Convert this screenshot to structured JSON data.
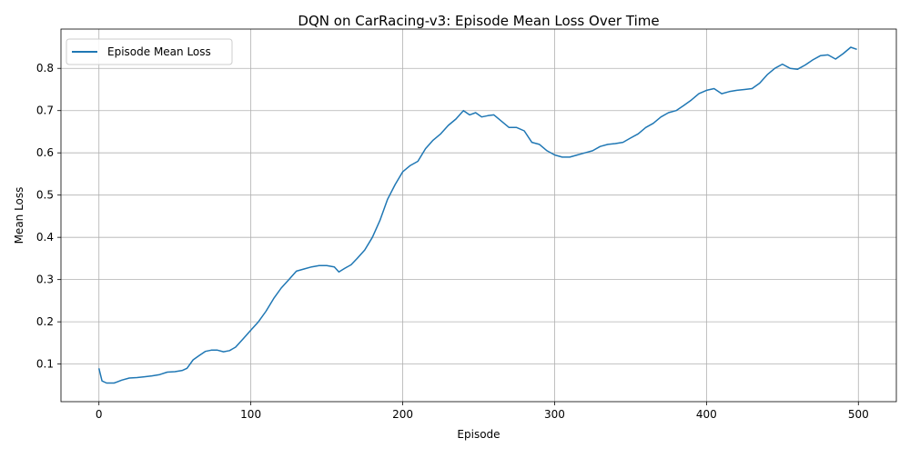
{
  "chart_data": {
    "type": "line",
    "title": "DQN on CarRacing-v3: Episode Mean Loss Over Time",
    "xlabel": "Episode",
    "ylabel": "Mean Loss",
    "xlim": [
      -25,
      525
    ],
    "ylim": [
      0.011,
      0.893
    ],
    "xticks": [
      0,
      100,
      200,
      300,
      400,
      500
    ],
    "xtick_labels": [
      "0",
      "100",
      "200",
      "300",
      "400",
      "500"
    ],
    "yticks": [
      0.1,
      0.2,
      0.3,
      0.4,
      0.5,
      0.6,
      0.7,
      0.8
    ],
    "ytick_labels": [
      "0.1",
      "0.2",
      "0.3",
      "0.4",
      "0.5",
      "0.6",
      "0.7",
      "0.8"
    ],
    "grid": true,
    "legend_position": "top-left",
    "series": [
      {
        "name": "Episode Mean Loss",
        "color": "#1f77b4",
        "x": [
          0,
          2,
          5,
          10,
          15,
          20,
          25,
          30,
          35,
          40,
          45,
          50,
          55,
          58,
          62,
          66,
          70,
          74,
          78,
          82,
          86,
          90,
          95,
          100,
          105,
          110,
          115,
          120,
          125,
          130,
          135,
          140,
          145,
          150,
          155,
          158,
          162,
          166,
          170,
          175,
          180,
          185,
          190,
          195,
          200,
          205,
          210,
          215,
          220,
          225,
          230,
          235,
          240,
          244,
          248,
          252,
          256,
          260,
          265,
          270,
          275,
          280,
          285,
          290,
          295,
          300,
          305,
          310,
          315,
          320,
          325,
          330,
          335,
          340,
          345,
          350,
          355,
          360,
          365,
          370,
          375,
          380,
          385,
          390,
          395,
          400,
          405,
          410,
          415,
          420,
          425,
          430,
          435,
          440,
          445,
          450,
          455,
          460,
          465,
          470,
          475,
          480,
          485,
          490,
          495,
          499
        ],
        "values": [
          0.09,
          0.06,
          0.055,
          0.055,
          0.062,
          0.067,
          0.068,
          0.07,
          0.072,
          0.075,
          0.081,
          0.082,
          0.085,
          0.09,
          0.11,
          0.12,
          0.13,
          0.133,
          0.133,
          0.129,
          0.132,
          0.14,
          0.16,
          0.18,
          0.2,
          0.225,
          0.255,
          0.28,
          0.3,
          0.32,
          0.325,
          0.33,
          0.333,
          0.333,
          0.33,
          0.318,
          0.327,
          0.335,
          0.35,
          0.37,
          0.4,
          0.44,
          0.49,
          0.525,
          0.555,
          0.57,
          0.58,
          0.61,
          0.63,
          0.645,
          0.665,
          0.68,
          0.7,
          0.69,
          0.695,
          0.685,
          0.688,
          0.69,
          0.675,
          0.66,
          0.66,
          0.652,
          0.625,
          0.62,
          0.605,
          0.595,
          0.59,
          0.59,
          0.595,
          0.6,
          0.605,
          0.615,
          0.62,
          0.622,
          0.625,
          0.635,
          0.645,
          0.66,
          0.67,
          0.685,
          0.695,
          0.7,
          0.712,
          0.725,
          0.74,
          0.748,
          0.752,
          0.74,
          0.745,
          0.748,
          0.75,
          0.752,
          0.765,
          0.785,
          0.8,
          0.81,
          0.8,
          0.798,
          0.808,
          0.82,
          0.83,
          0.832,
          0.822,
          0.835,
          0.85,
          0.845
        ]
      }
    ]
  }
}
